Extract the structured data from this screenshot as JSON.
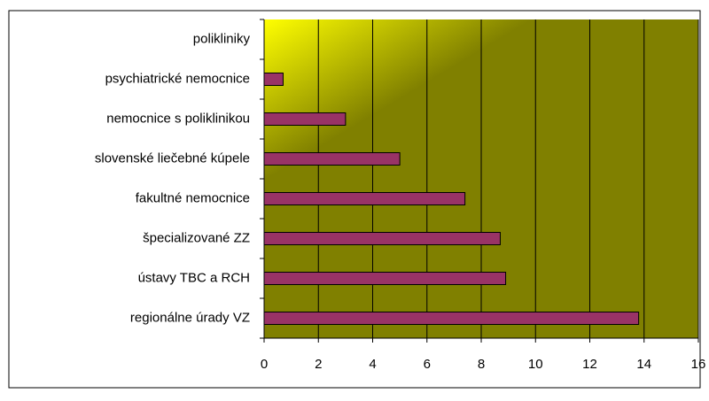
{
  "chart_data": {
    "type": "bar",
    "orientation": "horizontal",
    "categories": [
      "polikliniky",
      "psychiatrické nemocnice",
      "nemocnice s poliklinikou",
      "slovenské liečebné kúpele",
      "fakultné nemocnice",
      "špecializované ZZ",
      "ústavy TBC a RCH",
      "regionálne úrady VZ"
    ],
    "values": [
      0,
      0.7,
      3,
      5,
      7.4,
      8.7,
      8.9,
      13.8
    ],
    "color": "#993366",
    "xlim": [
      0,
      16
    ],
    "xticks": [
      0,
      2,
      4,
      6,
      8,
      10,
      12,
      14,
      16
    ],
    "grid": true
  }
}
